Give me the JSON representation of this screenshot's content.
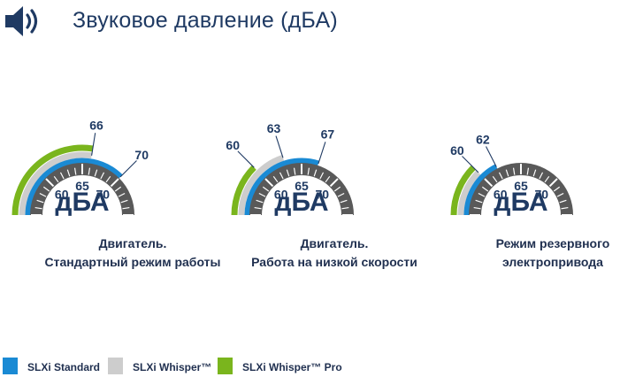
{
  "header": {
    "title": "Звуковое давление (дБА)",
    "icon": "speaker-icon"
  },
  "unit": "дБА",
  "colors": {
    "standard": "#1a8ad4",
    "whisper": "#cdcdcd",
    "whisper_pro": "#7ab51d",
    "dial": "#595959",
    "text": "#1f3a63"
  },
  "gauges": [
    {
      "caption_line1": "Двигатель.",
      "caption_line2": "Стандартный режим работы",
      "tick_labels": [
        "60",
        "65",
        "70"
      ],
      "values": {
        "standard": 70,
        "whisper": 66,
        "whisper_pro": 66
      },
      "callouts": [
        "66",
        "70"
      ]
    },
    {
      "caption_line1": "Двигатель.",
      "caption_line2": "Работа на низкой скорости",
      "tick_labels": [
        "60",
        "65",
        "70"
      ],
      "values": {
        "standard": 67,
        "whisper": 63,
        "whisper_pro": 60
      },
      "callouts": [
        "60",
        "63",
        "67"
      ]
    },
    {
      "caption_line1": "Режим резервного",
      "caption_line2": "электропривода",
      "tick_labels": [
        "60",
        "65",
        "70"
      ],
      "values": {
        "standard": 62,
        "whisper": 60,
        "whisper_pro": 60
      },
      "callouts": [
        "60",
        "62"
      ]
    }
  ],
  "legend": [
    {
      "label": "SLXi Standard",
      "color": "#1a8ad4"
    },
    {
      "label": "SLXi Whisper™",
      "color": "#cdcdcd"
    },
    {
      "label": "SLXi Whisper™ Pro",
      "color": "#7ab51d"
    }
  ]
}
